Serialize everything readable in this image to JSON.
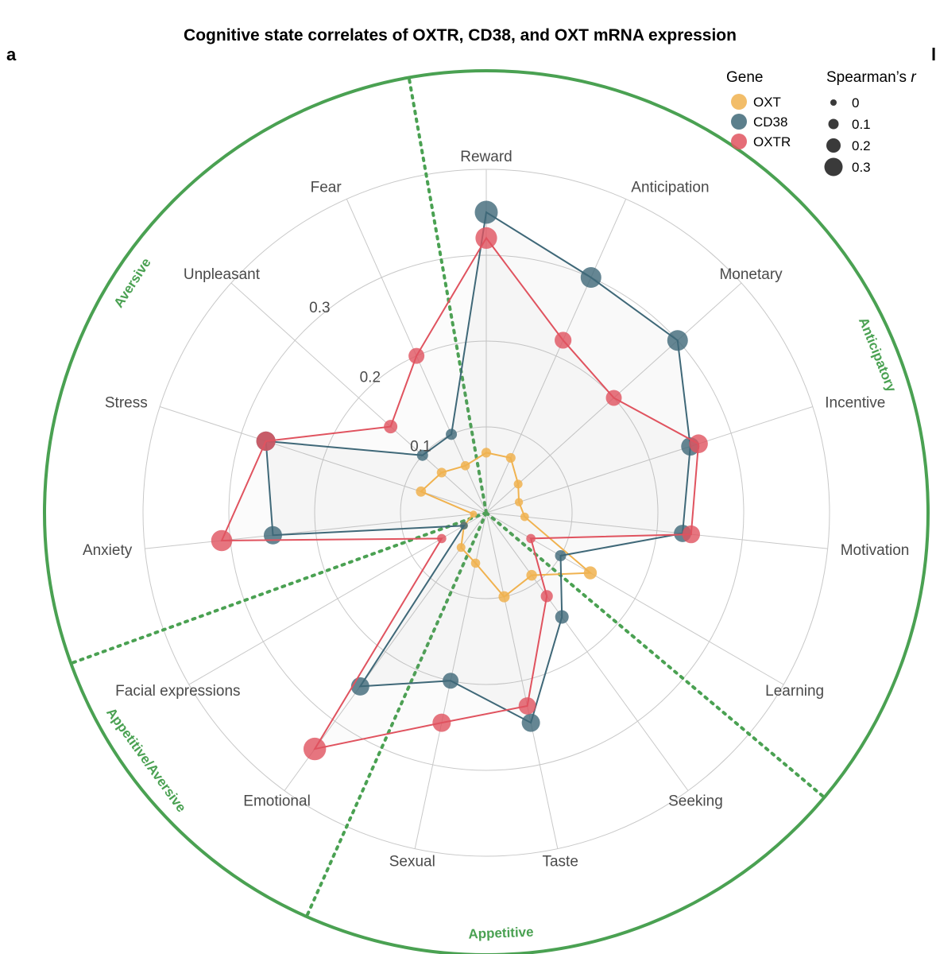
{
  "title": "Cognitive state correlates of OXTR, CD38, and OXT mRNA expression",
  "panel_label": "a",
  "edge_label": "l",
  "colors": {
    "OXT": "#f0b24f",
    "CD38": "#3f6878",
    "OXTR": "#e0535f",
    "region": "#4aa152",
    "grid": "#c8c8c8"
  },
  "legend": {
    "gene_title": "Gene",
    "genes": [
      "OXT",
      "CD38",
      "OXTR"
    ],
    "size_title": "Spearman’s ",
    "size_title_italic": "r",
    "size_levels": [
      "0",
      "0.1",
      "0.2",
      "0.3"
    ]
  },
  "regions": [
    "Anticipatory",
    "Appetitive",
    "Appetitive/Aversive",
    "Aversive"
  ],
  "chart_data": {
    "type": "radar",
    "categories": [
      "Reward",
      "Anticipation",
      "Monetary",
      "Incentive",
      "Motivation",
      "Learning",
      "Seeking",
      "Taste",
      "Sexual",
      "Emotional",
      "Facial expressions",
      "Anxiety",
      "Stress",
      "Unpleasant",
      "Fear"
    ],
    "radial_ticks": [
      "0.1",
      "0.2",
      "0.3"
    ],
    "radial_range": [
      0,
      0.4
    ],
    "grid": true,
    "legend_position": "top-right",
    "series": [
      {
        "name": "OXT",
        "values": [
          0.07,
          0.07,
          0.05,
          0.04,
          0.045,
          0.14,
          0.09,
          0.1,
          0.06,
          0.05,
          0.03,
          0.015,
          0.08,
          0.07,
          0.06
        ]
      },
      {
        "name": "CD38",
        "values": [
          0.35,
          0.3,
          0.3,
          0.25,
          0.23,
          0.1,
          0.15,
          0.25,
          0.2,
          0.25,
          0.03,
          0.25,
          0.27,
          0.1,
          0.1
        ]
      },
      {
        "name": "OXTR",
        "values": [
          0.32,
          0.22,
          0.2,
          0.26,
          0.24,
          0.06,
          0.12,
          0.23,
          0.25,
          0.34,
          0.06,
          0.31,
          0.27,
          0.15,
          0.2
        ]
      }
    ]
  }
}
